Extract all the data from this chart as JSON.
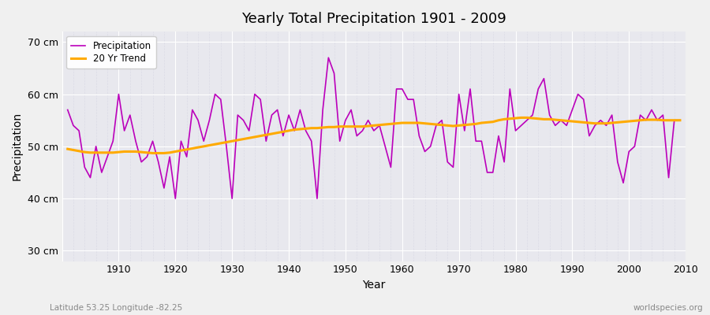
{
  "title": "Yearly Total Precipitation 1901 - 2009",
  "xlabel": "Year",
  "ylabel": "Precipitation",
  "footnote_left": "Latitude 53.25 Longitude -82.25",
  "footnote_right": "worldspecies.org",
  "legend_labels": [
    "Precipitation",
    "20 Yr Trend"
  ],
  "precip_color": "#bb00bb",
  "trend_color": "#ffaa00",
  "bg_color": "#f0f0f0",
  "plot_bg_color": "#e8e8ee",
  "grid_color_major": "#ffffff",
  "grid_color_minor": "#d8d8e4",
  "ylim": [
    28,
    72
  ],
  "yticks": [
    30,
    40,
    50,
    60,
    70
  ],
  "ytick_labels": [
    "30 cm",
    "40 cm",
    "50 cm",
    "60 cm",
    "70 cm"
  ],
  "years": [
    1901,
    1902,
    1903,
    1904,
    1905,
    1906,
    1907,
    1908,
    1909,
    1910,
    1911,
    1912,
    1913,
    1914,
    1915,
    1916,
    1917,
    1918,
    1919,
    1920,
    1921,
    1922,
    1923,
    1924,
    1925,
    1926,
    1927,
    1928,
    1929,
    1930,
    1931,
    1932,
    1933,
    1934,
    1935,
    1936,
    1937,
    1938,
    1939,
    1940,
    1941,
    1942,
    1943,
    1944,
    1945,
    1946,
    1947,
    1948,
    1949,
    1950,
    1951,
    1952,
    1953,
    1954,
    1955,
    1956,
    1957,
    1958,
    1959,
    1960,
    1961,
    1962,
    1963,
    1964,
    1965,
    1966,
    1967,
    1968,
    1969,
    1970,
    1971,
    1972,
    1973,
    1974,
    1975,
    1976,
    1977,
    1978,
    1979,
    1980,
    1981,
    1982,
    1983,
    1984,
    1985,
    1986,
    1987,
    1988,
    1989,
    1990,
    1991,
    1992,
    1993,
    1994,
    1995,
    1996,
    1997,
    1998,
    1999,
    2000,
    2001,
    2002,
    2003,
    2004,
    2005,
    2006,
    2007,
    2008,
    2009
  ],
  "precip": [
    57,
    54,
    53,
    46,
    44,
    50,
    45,
    48,
    51,
    60,
    53,
    56,
    51,
    47,
    48,
    51,
    47,
    42,
    48,
    40,
    51,
    48,
    57,
    55,
    51,
    55,
    60,
    59,
    50,
    40,
    56,
    55,
    53,
    60,
    59,
    51,
    56,
    57,
    52,
    56,
    53,
    57,
    53,
    51,
    40,
    57,
    67,
    64,
    51,
    55,
    57,
    52,
    53,
    55,
    53,
    54,
    50,
    46,
    61,
    61,
    59,
    59,
    52,
    49,
    50,
    54,
    55,
    47,
    46,
    60,
    53,
    61,
    51,
    51,
    45,
    45,
    52,
    47,
    61,
    53,
    54,
    55,
    56,
    61,
    63,
    56,
    54,
    55,
    54,
    57,
    60,
    59,
    52,
    54,
    55,
    54,
    56,
    47,
    43,
    49,
    50,
    56,
    55,
    57,
    55,
    56,
    44,
    55,
    55
  ],
  "trend": [
    49.5,
    49.3,
    49.1,
    48.9,
    48.8,
    48.8,
    48.8,
    48.8,
    48.8,
    48.9,
    49.0,
    49.0,
    49.0,
    48.9,
    48.8,
    48.7,
    48.7,
    48.7,
    48.8,
    49.0,
    49.2,
    49.4,
    49.6,
    49.8,
    50.0,
    50.2,
    50.4,
    50.6,
    50.8,
    51.0,
    51.2,
    51.4,
    51.6,
    51.8,
    52.0,
    52.2,
    52.4,
    52.6,
    52.8,
    53.0,
    53.2,
    53.3,
    53.4,
    53.5,
    53.5,
    53.6,
    53.7,
    53.7,
    53.8,
    53.8,
    53.8,
    53.8,
    53.8,
    53.9,
    54.0,
    54.1,
    54.2,
    54.3,
    54.4,
    54.5,
    54.5,
    54.5,
    54.5,
    54.4,
    54.3,
    54.2,
    54.1,
    54.0,
    53.9,
    54.0,
    54.1,
    54.2,
    54.3,
    54.5,
    54.6,
    54.7,
    55.0,
    55.2,
    55.3,
    55.4,
    55.5,
    55.5,
    55.4,
    55.3,
    55.2,
    55.2,
    55.1,
    55.0,
    54.9,
    54.8,
    54.7,
    54.6,
    54.5,
    54.4,
    54.4,
    54.4,
    54.5,
    54.6,
    54.7,
    54.8,
    54.9,
    55.0,
    55.1,
    55.1,
    55.1,
    55.0,
    55.0,
    55.0,
    55.0
  ]
}
